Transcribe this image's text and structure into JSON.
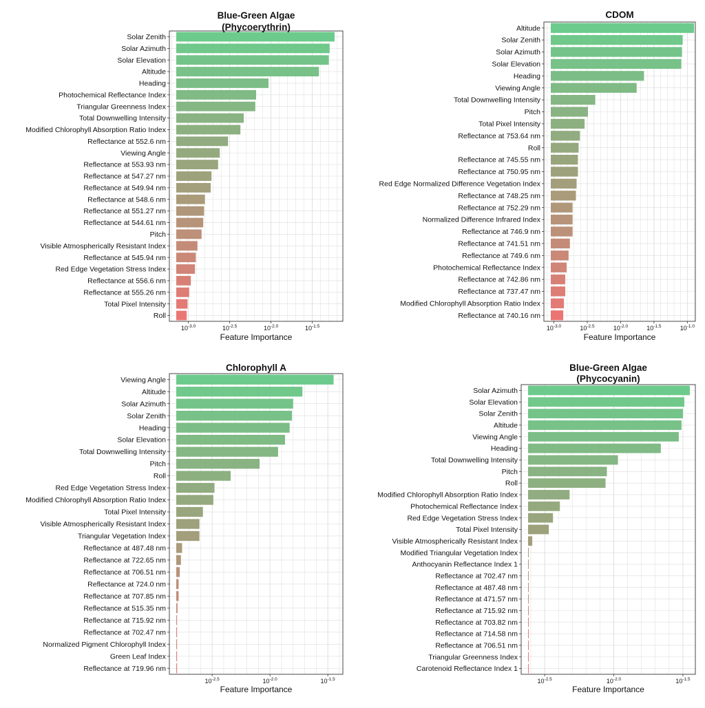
{
  "figure": {
    "background": "#ffffff",
    "grid": true
  },
  "colors": {
    "high": "#6ccb8c",
    "mid": "#9da27c",
    "low": "#ea7674",
    "grid": "#dcdcdc",
    "axis": "#333333"
  },
  "chart_data": [
    {
      "type": "bar",
      "orientation": "horizontal",
      "title": "Blue-Green Algae\n(Phycoerythrin)",
      "xlabel": "Feature Importance",
      "x_scale": "log10",
      "xlim": [
        -3.23,
        -1.13
      ],
      "xticks": [
        {
          "value": -3.0,
          "base": "10",
          "exp": "-3.0"
        },
        {
          "value": -2.5,
          "base": "10",
          "exp": "-2.5"
        },
        {
          "value": -2.0,
          "base": "10",
          "exp": "-2.0"
        },
        {
          "value": -1.5,
          "base": "10",
          "exp": "-1.5"
        }
      ],
      "categories": [
        "Solar Zenith",
        "Solar Azimuth",
        "Solar Elevation",
        "Altitude",
        "Heading",
        "Photochemical Reflectance Index",
        "Triangular Greenness Index",
        "Total Downwelling Intensity",
        "Modified Chlorophyll Absorption Ratio Index",
        "Reflectance at 552.6 nm",
        "Viewing Angle",
        "Reflectance at 553.93 nm",
        "Reflectance at 547.27 nm",
        "Reflectance at 549.94 nm",
        "Reflectance at 548.6 nm",
        "Reflectance at 551.27 nm",
        "Reflectance at 544.61 nm",
        "Pitch",
        "Visible Atmospherically Resistant Index",
        "Reflectance at 545.94 nm",
        "Red Edge Vegetation Stress Index",
        "Reflectance at 556.6 nm",
        "Reflectance at 555.26 nm",
        "Total Pixel Intensity",
        "Roll"
      ],
      "values_log10": [
        -1.23,
        -1.29,
        -1.3,
        -1.42,
        -2.03,
        -2.18,
        -2.19,
        -2.33,
        -2.37,
        -2.52,
        -2.62,
        -2.64,
        -2.72,
        -2.73,
        -2.8,
        -2.81,
        -2.82,
        -2.84,
        -2.89,
        -2.91,
        -2.92,
        -2.97,
        -2.99,
        -3.01,
        -3.02
      ]
    },
    {
      "type": "bar",
      "orientation": "horizontal",
      "title": "CDOM",
      "xlabel": "Feature Importance",
      "x_scale": "log10",
      "xlim": [
        -3.15,
        -0.88
      ],
      "xticks": [
        {
          "value": -3.0,
          "base": "10",
          "exp": "-3.0"
        },
        {
          "value": -2.5,
          "base": "10",
          "exp": "-2.5"
        },
        {
          "value": -2.0,
          "base": "10",
          "exp": "-2.0"
        },
        {
          "value": -1.5,
          "base": "10",
          "exp": "-1.5"
        },
        {
          "value": -1.0,
          "base": "10",
          "exp": "-1.0"
        }
      ],
      "categories": [
        "Altitude",
        "Solar Zenith",
        "Solar Azimuth",
        "Solar Elevation",
        "Heading",
        "Viewing Angle",
        "Total Downwelling Intensity",
        "Pitch",
        "Total Pixel Intensity",
        "Reflectance at 753.64 nm",
        "Roll",
        "Reflectance at 745.55 nm",
        "Reflectance at 750.95 nm",
        "Red Edge Normalized Difference Vegetation Index",
        "Reflectance at 748.25 nm",
        "Reflectance at 752.29 nm",
        "Normalized Difference Infrared Index",
        "Reflectance at 746.9 nm",
        "Reflectance at 741.51 nm",
        "Reflectance at 749.6 nm",
        "Photochemical Reflectance Index",
        "Reflectance at 742.86 nm",
        "Reflectance at 737.47 nm",
        "Modified Chlorophyll Absorption Ratio Index",
        "Reflectance at 740.16 nm"
      ],
      "values_log10": [
        -0.9,
        -1.07,
        -1.08,
        -1.09,
        -1.65,
        -1.76,
        -2.38,
        -2.49,
        -2.54,
        -2.61,
        -2.63,
        -2.64,
        -2.64,
        -2.66,
        -2.67,
        -2.72,
        -2.72,
        -2.72,
        -2.76,
        -2.78,
        -2.81,
        -2.83,
        -2.83,
        -2.85,
        -2.86
      ]
    },
    {
      "type": "bar",
      "orientation": "horizontal",
      "title": "Chlorophyll A",
      "xlabel": "Feature Importance",
      "x_scale": "log10",
      "xlim": [
        -2.87,
        -1.37
      ],
      "xticks": [
        {
          "value": -2.5,
          "base": "10",
          "exp": "-2.5"
        },
        {
          "value": -2.0,
          "base": "10",
          "exp": "-2.0"
        },
        {
          "value": -1.5,
          "base": "10",
          "exp": "-1.5"
        }
      ],
      "categories": [
        "Viewing Angle",
        "Altitude",
        "Solar Azimuth",
        "Solar Zenith",
        "Heading",
        "Solar Elevation",
        "Total Downwelling Intensity",
        "Pitch",
        "Roll",
        "Red Edge Vegetation Stress Index",
        "Modified Chlorophyll Absorption Ratio Index",
        "Total Pixel Intensity",
        "Visible Atmospherically Resistant Index",
        "Triangular Vegetation Index",
        "Reflectance at 487.48 nm",
        "Reflectance at 722.65 nm",
        "Reflectance at 706.51 nm",
        "Reflectance at 724.0 nm",
        "Reflectance at 707.85 nm",
        "Reflectance at 515.35 nm",
        "Reflectance at 715.92 nm",
        "Reflectance at 702.47 nm",
        "Normalized Pigment Chlorophyll Index",
        "Green Leaf Index",
        "Reflectance at 719.96 nm"
      ],
      "values_log10": [
        -1.45,
        -1.72,
        -1.8,
        -1.81,
        -1.83,
        -1.87,
        -1.93,
        -2.09,
        -2.34,
        -2.48,
        -2.49,
        -2.58,
        -2.61,
        -2.61,
        -2.76,
        -2.77,
        -2.78,
        -2.79,
        -2.79,
        -2.8,
        -2.81,
        -2.82,
        -2.84,
        -2.85,
        -2.85
      ]
    },
    {
      "type": "bar",
      "orientation": "horizontal",
      "title": "Blue-Green Algae\n(Phycocyanin)",
      "xlabel": "Feature Importance",
      "x_scale": "log10",
      "xlim": [
        -2.67,
        -1.41
      ],
      "xticks": [
        {
          "value": -2.5,
          "base": "10",
          "exp": "-2.5"
        },
        {
          "value": -2.0,
          "base": "10",
          "exp": "-2.0"
        },
        {
          "value": -1.5,
          "base": "10",
          "exp": "-1.5"
        }
      ],
      "categories": [
        "Solar Azimuth",
        "Solar Elevation",
        "Solar Zenith",
        "Altitude",
        "Viewing Angle",
        "Heading",
        "Total Downwelling Intensity",
        "Pitch",
        "Roll",
        "Modified Chlorophyll Absorption Ratio Index",
        "Photochemical Reflectance Index",
        "Red Edge Vegetation Stress Index",
        "Total Pixel Intensity",
        "Visible Atmospherically Resistant Index",
        "Modified Triangular Vegetation Index",
        "Anthocyanin Reflectance Index 1",
        "Reflectance at 702.47 nm",
        "Reflectance at 487.48 nm",
        "Reflectance at 471.57 nm",
        "Reflectance at 715.92 nm",
        "Reflectance at 703.82 nm",
        "Reflectance at 714.58 nm",
        "Reflectance at 706.51 nm",
        "Triangular Greenness Index",
        "Carotenoid Reflectance Index 1"
      ],
      "values_log10": [
        -1.45,
        -1.49,
        -1.5,
        -1.51,
        -1.53,
        -1.66,
        -1.97,
        -2.05,
        -2.06,
        -2.32,
        -2.39,
        -2.44,
        -2.47,
        -2.59,
        -2.63,
        -2.63,
        -2.64,
        -2.65,
        -2.65,
        -2.66,
        -2.67,
        -2.67,
        -2.68,
        -2.68,
        -2.68
      ]
    }
  ]
}
